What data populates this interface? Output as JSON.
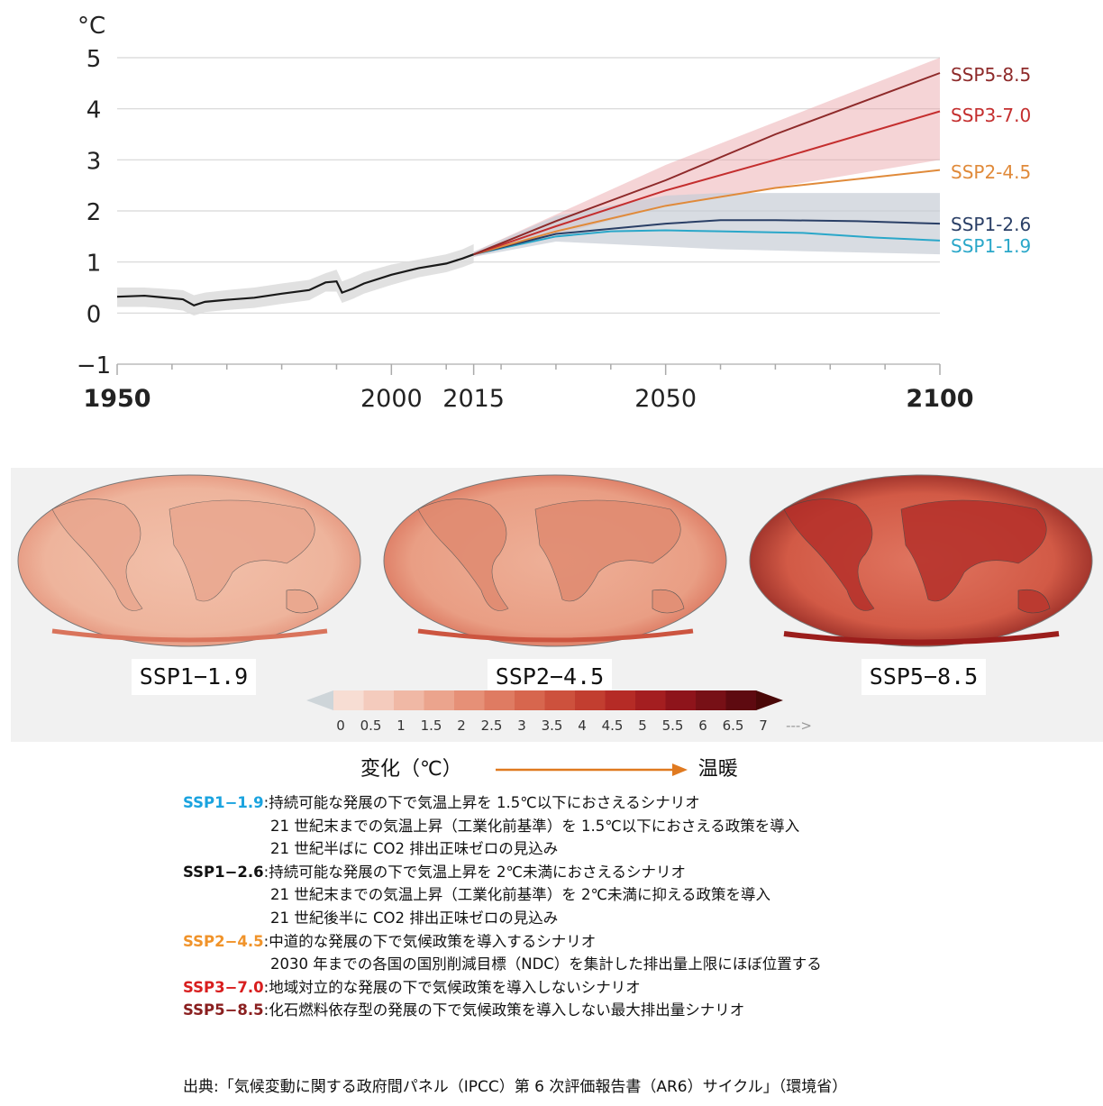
{
  "chart_data": {
    "type": "line",
    "y_unit": "°C",
    "ylim": [
      -1,
      5
    ],
    "yticks": [
      -1,
      0,
      1,
      2,
      3,
      4,
      5
    ],
    "xlim": [
      1950,
      2100
    ],
    "xtick_labels": [
      1950,
      2000,
      2015,
      2050,
      2100
    ],
    "xtick_marks": [
      1950,
      1960,
      1970,
      1980,
      1990,
      2000,
      2010,
      2015,
      2020,
      2030,
      2040,
      2050,
      2060,
      2070,
      2080,
      2090,
      2100
    ],
    "grid": true,
    "historical": {
      "color": "#1a1a1a",
      "x": [
        1950,
        1955,
        1958,
        1962,
        1964,
        1966,
        1970,
        1975,
        1980,
        1985,
        1988,
        1990,
        1991,
        1993,
        1995,
        2000,
        2005,
        2010,
        2013,
        2015
      ],
      "y": [
        0.32,
        0.34,
        0.31,
        0.27,
        0.15,
        0.22,
        0.26,
        0.3,
        0.38,
        0.45,
        0.6,
        0.62,
        0.4,
        0.48,
        0.58,
        0.75,
        0.88,
        0.97,
        1.07,
        1.15
      ],
      "band_upper": [
        0.5,
        0.5,
        0.48,
        0.45,
        0.35,
        0.4,
        0.45,
        0.5,
        0.58,
        0.65,
        0.78,
        0.85,
        0.62,
        0.7,
        0.8,
        0.95,
        1.05,
        1.15,
        1.25,
        1.35
      ],
      "band_lower": [
        0.12,
        0.12,
        0.1,
        0.05,
        -0.05,
        0.02,
        0.06,
        0.1,
        0.18,
        0.25,
        0.42,
        0.42,
        0.2,
        0.28,
        0.38,
        0.55,
        0.7,
        0.8,
        0.9,
        0.98
      ]
    },
    "series": [
      {
        "name": "SSP5-8.5",
        "color": "#8e2a2a",
        "x": [
          2015,
          2030,
          2050,
          2070,
          2100
        ],
        "y": [
          1.15,
          1.8,
          2.6,
          3.5,
          4.7
        ]
      },
      {
        "name": "SSP3-7.0",
        "color": "#c42e2e",
        "x": [
          2015,
          2030,
          2050,
          2070,
          2100
        ],
        "y": [
          1.15,
          1.7,
          2.4,
          3.0,
          3.95
        ]
      },
      {
        "name": "SSP2-4.5",
        "color": "#e08a3a",
        "x": [
          2015,
          2030,
          2050,
          2070,
          2100
        ],
        "y": [
          1.15,
          1.6,
          2.1,
          2.45,
          2.8
        ]
      },
      {
        "name": "SSP1-2.6",
        "color": "#2a3f66",
        "x": [
          2015,
          2030,
          2050,
          2060,
          2070,
          2085,
          2100
        ],
        "y": [
          1.15,
          1.55,
          1.75,
          1.82,
          1.82,
          1.8,
          1.75
        ]
      },
      {
        "name": "SSP1-1.9",
        "color": "#2aa7c9",
        "x": [
          2015,
          2030,
          2040,
          2050,
          2060,
          2075,
          2088,
          2100
        ],
        "y": [
          1.15,
          1.5,
          1.6,
          1.62,
          1.6,
          1.57,
          1.48,
          1.42
        ]
      }
    ],
    "bands": [
      {
        "name": "SSP5-8.5",
        "color": "#e8a0a5",
        "x": [
          2015,
          2050,
          2100
        ],
        "upper": [
          1.2,
          2.9,
          5.0
        ],
        "lower": [
          1.1,
          2.1,
          3.0
        ]
      },
      {
        "name": "SSP1-2.6",
        "color": "#c7cdd6",
        "x": [
          2015,
          2030,
          2050,
          2060,
          2100
        ],
        "upper": [
          1.2,
          1.9,
          2.3,
          2.35,
          2.35
        ],
        "lower": [
          1.1,
          1.4,
          1.3,
          1.25,
          1.15
        ]
      }
    ]
  },
  "maps": [
    {
      "label": "SSP1−1.9"
    },
    {
      "label": "SSP2−4.5"
    },
    {
      "label": "SSP5−8.5"
    }
  ],
  "colorbar": {
    "ticks": [
      "0",
      "0.5",
      "1",
      "1.5",
      "2",
      "2.5",
      "3",
      "3.5",
      "4",
      "4.5",
      "5",
      "5.5",
      "6",
      "6.5",
      "7",
      "--->"
    ],
    "colors": [
      "#f7ddd3",
      "#f4cbbd",
      "#f0b8a5",
      "#eba48d",
      "#e69077",
      "#df7b62",
      "#d7664e",
      "#cd513d",
      "#c23e30",
      "#b52b26",
      "#a41e20",
      "#8e141b",
      "#771016",
      "#5e0a10"
    ]
  },
  "caption": {
    "label": "変化（℃）",
    "arrow_label": "温暖",
    "arrow_color": "#e07a20"
  },
  "legend": [
    {
      "key": "SSP1−1.9",
      "key_color": "#1aa3df",
      "text": ":持続可能な発展の下で気温上昇を 1.5℃以下におさえるシナリオ"
    },
    {
      "indent": "21 世紀末までの気温上昇（工業化前基準）を 1.5℃以下におさえる政策を導入"
    },
    {
      "indent": "21 世紀半ばに CO2 排出正味ゼロの見込み"
    },
    {
      "key": "SSP1−2.6",
      "key_color": "#111111",
      "text": ":持続可能な発展の下で気温上昇を 2℃未満におさえるシナリオ"
    },
    {
      "indent": "21 世紀末までの気温上昇（工業化前基準）を 2℃未満に抑える政策を導入"
    },
    {
      "indent": "21 世紀後半に CO2 排出正味ゼロの見込み"
    },
    {
      "key": "SSP2−4.5",
      "key_color": "#f0932a",
      "text": ":中道的な発展の下で気候政策を導入するシナリオ"
    },
    {
      "indent": "2030 年までの各国の国別削減目標（NDC）を集計した排出量上限にほぼ位置する"
    },
    {
      "key": "SSP3−7.0",
      "key_color": "#d81e1e",
      "text": ":地域対立的な発展の下で気候政策を導入しないシナリオ"
    },
    {
      "key": "SSP5−8.5",
      "key_color": "#8a1f1f",
      "text": ":化石燃料依存型の発展の下で気候政策を導入しない最大排出量シナリオ"
    }
  ],
  "source": "出典:「気候変動に関する政府間パネル（IPCC）第 6 次評価報告書（AR6）サイクル」（環境省）"
}
